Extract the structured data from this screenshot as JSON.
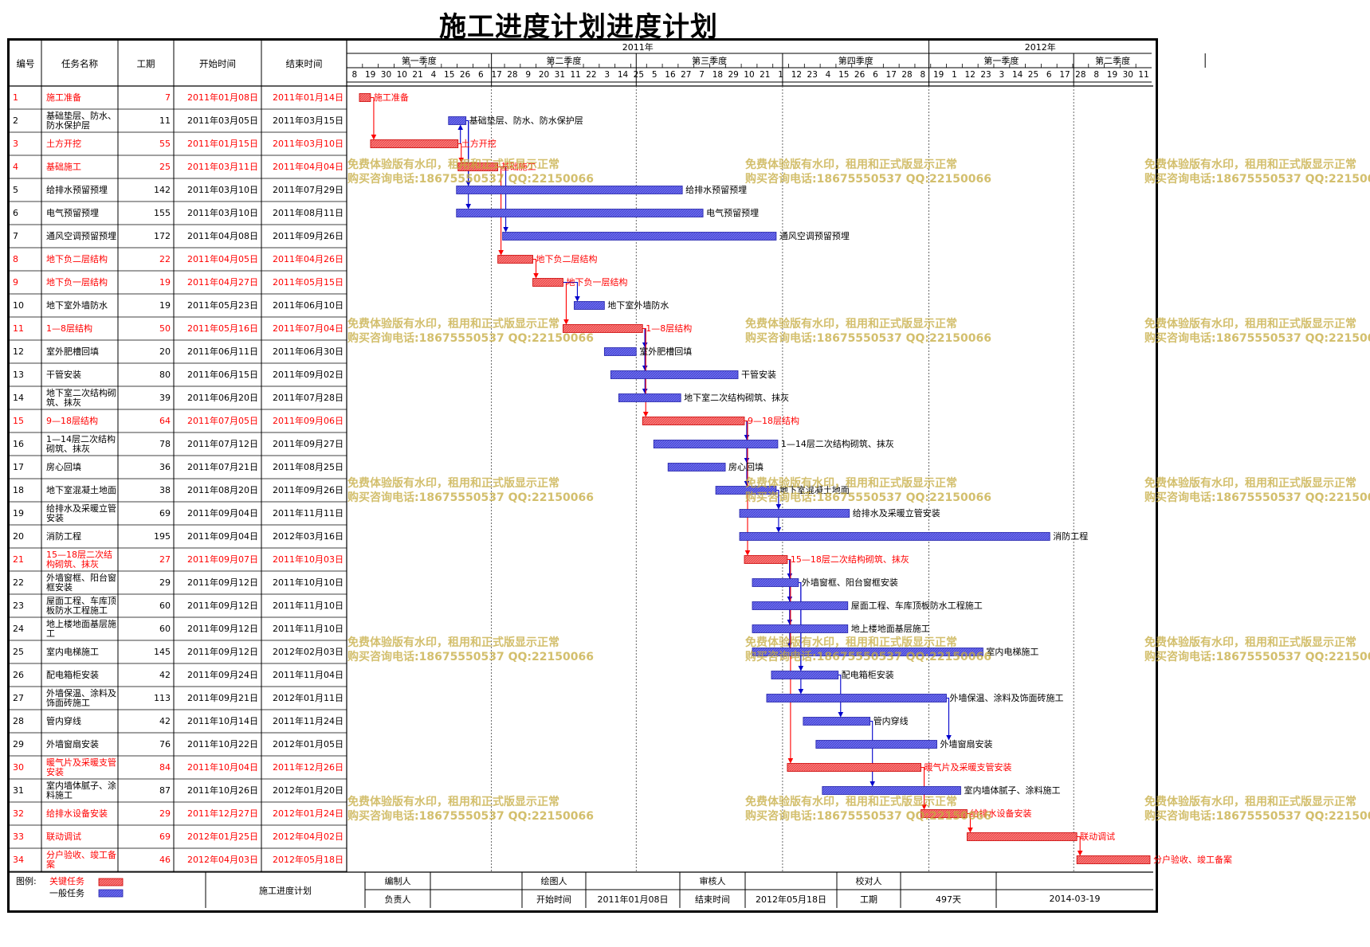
{
  "title": "施工进度计划进度计划",
  "table_headers": {
    "id": "编号",
    "name": "任务名称",
    "duration": "工期",
    "start": "开始时间",
    "end": "结束时间"
  },
  "years": [
    "2011年",
    "2012年"
  ],
  "quarters": [
    "第一季度",
    "第二季度",
    "第三季度",
    "第四季度",
    "第一季度",
    "第二季度"
  ],
  "week_ticks": [
    "8",
    "19",
    "30",
    "10",
    "21",
    "4",
    "15",
    "26",
    "6",
    "17",
    "28",
    "9",
    "20",
    "31",
    "11",
    "22",
    "3",
    "14",
    "25",
    "5",
    "16",
    "27",
    "7",
    "18",
    "29",
    "10",
    "21",
    "1",
    "12",
    "23",
    "4",
    "15",
    "26",
    "6",
    "17",
    "28",
    "8",
    "19",
    "1",
    "12",
    "23",
    "3",
    "14",
    "25",
    "6",
    "17",
    "28",
    "8",
    "19",
    "30",
    "11"
  ],
  "colors": {
    "critical": "#ff6b6b",
    "normal": "#6666ee",
    "critical_text": "#ff0000",
    "link_critical": "#ff0000",
    "link_normal": "#0000cc"
  },
  "chart_data": {
    "type": "gantt",
    "title": "施工进度计划进度计划",
    "axis_start": "2011-01-08",
    "axis_end": "2012-05-18",
    "tasks": [
      {
        "id": "1",
        "name": "施工准备",
        "duration": "7",
        "start": "2011年01月08日",
        "end": "2011年01月14日",
        "s": "2011-01-08",
        "e": "2011-01-14",
        "critical": true
      },
      {
        "id": "2",
        "name": "基础垫层、防水、防水保护层",
        "duration": "11",
        "start": "2011年03月05日",
        "end": "2011年03月15日",
        "s": "2011-03-05",
        "e": "2011-03-15",
        "critical": false
      },
      {
        "id": "3",
        "name": "土方开挖",
        "duration": "55",
        "start": "2011年01月15日",
        "end": "2011年03月10日",
        "s": "2011-01-15",
        "e": "2011-03-10",
        "critical": true
      },
      {
        "id": "4",
        "name": "基础施工",
        "duration": "25",
        "start": "2011年03月11日",
        "end": "2011年04月04日",
        "s": "2011-03-11",
        "e": "2011-04-04",
        "critical": true
      },
      {
        "id": "5",
        "name": "给排水预留预埋",
        "duration": "142",
        "start": "2011年03月10日",
        "end": "2011年07月29日",
        "s": "2011-03-10",
        "e": "2011-07-29",
        "critical": false
      },
      {
        "id": "6",
        "name": "电气预留预埋",
        "duration": "155",
        "start": "2011年03月10日",
        "end": "2011年08月11日",
        "s": "2011-03-10",
        "e": "2011-08-11",
        "critical": false
      },
      {
        "id": "7",
        "name": "通风空调预留预埋",
        "duration": "172",
        "start": "2011年04月08日",
        "end": "2011年09月26日",
        "s": "2011-04-08",
        "e": "2011-09-26",
        "critical": false
      },
      {
        "id": "8",
        "name": "地下负二层结构",
        "duration": "22",
        "start": "2011年04月05日",
        "end": "2011年04月26日",
        "s": "2011-04-05",
        "e": "2011-04-26",
        "critical": true
      },
      {
        "id": "9",
        "name": "地下负一层结构",
        "duration": "19",
        "start": "2011年04月27日",
        "end": "2011年05月15日",
        "s": "2011-04-27",
        "e": "2011-05-15",
        "critical": true
      },
      {
        "id": "10",
        "name": "地下室外墙防水",
        "duration": "19",
        "start": "2011年05月23日",
        "end": "2011年06月10日",
        "s": "2011-05-23",
        "e": "2011-06-10",
        "critical": false
      },
      {
        "id": "11",
        "name": "1—8层结构",
        "duration": "50",
        "start": "2011年05月16日",
        "end": "2011年07月04日",
        "s": "2011-05-16",
        "e": "2011-07-04",
        "critical": true
      },
      {
        "id": "12",
        "name": "室外肥槽回填",
        "duration": "20",
        "start": "2011年06月11日",
        "end": "2011年06月30日",
        "s": "2011-06-11",
        "e": "2011-06-30",
        "critical": false
      },
      {
        "id": "13",
        "name": "干管安装",
        "duration": "80",
        "start": "2011年06月15日",
        "end": "2011年09月02日",
        "s": "2011-06-15",
        "e": "2011-09-02",
        "critical": false
      },
      {
        "id": "14",
        "name": "地下室二次结构砌筑、抹灰",
        "duration": "39",
        "start": "2011年06月20日",
        "end": "2011年07月28日",
        "s": "2011-06-20",
        "e": "2011-07-28",
        "critical": false
      },
      {
        "id": "15",
        "name": "9—18层结构",
        "duration": "64",
        "start": "2011年07月05日",
        "end": "2011年09月06日",
        "s": "2011-07-05",
        "e": "2011-09-06",
        "critical": true
      },
      {
        "id": "16",
        "name": "1—14层二次结构砌筑、抹灰",
        "duration": "78",
        "start": "2011年07月12日",
        "end": "2011年09月27日",
        "s": "2011-07-12",
        "e": "2011-09-27",
        "critical": false
      },
      {
        "id": "17",
        "name": "房心回填",
        "duration": "36",
        "start": "2011年07月21日",
        "end": "2011年08月25日",
        "s": "2011-07-21",
        "e": "2011-08-25",
        "critical": false
      },
      {
        "id": "18",
        "name": "地下室混凝土地面",
        "duration": "38",
        "start": "2011年08月20日",
        "end": "2011年09月26日",
        "s": "2011-08-20",
        "e": "2011-09-26",
        "critical": false
      },
      {
        "id": "19",
        "name": "给排水及采暖立管安装",
        "duration": "69",
        "start": "2011年09月04日",
        "end": "2011年11月11日",
        "s": "2011-09-04",
        "e": "2011-11-11",
        "critical": false
      },
      {
        "id": "20",
        "name": "消防工程",
        "duration": "195",
        "start": "2011年09月04日",
        "end": "2012年03月16日",
        "s": "2011-09-04",
        "e": "2012-03-16",
        "critical": false
      },
      {
        "id": "21",
        "name": "15—18层二次结构砌筑、抹灰",
        "duration": "27",
        "start": "2011年09月07日",
        "end": "2011年10月03日",
        "s": "2011-09-07",
        "e": "2011-10-03",
        "critical": true
      },
      {
        "id": "22",
        "name": "外墙窗框、阳台窗框安装",
        "duration": "29",
        "start": "2011年09月12日",
        "end": "2011年10月10日",
        "s": "2011-09-12",
        "e": "2011-10-10",
        "critical": false
      },
      {
        "id": "23",
        "name": "屋面工程、车库顶板防水工程施工",
        "duration": "60",
        "start": "2011年09月12日",
        "end": "2011年11月10日",
        "s": "2011-09-12",
        "e": "2011-11-10",
        "critical": false
      },
      {
        "id": "24",
        "name": "地上楼地面基层施工",
        "duration": "60",
        "start": "2011年09月12日",
        "end": "2011年11月10日",
        "s": "2011-09-12",
        "e": "2011-11-10",
        "critical": false
      },
      {
        "id": "25",
        "name": "室内电梯施工",
        "duration": "145",
        "start": "2011年09月12日",
        "end": "2012年02月03日",
        "s": "2011-09-12",
        "e": "2012-02-03",
        "critical": false
      },
      {
        "id": "26",
        "name": "配电箱柜安装",
        "duration": "42",
        "start": "2011年09月24日",
        "end": "2011年11月04日",
        "s": "2011-09-24",
        "e": "2011-11-04",
        "critical": false
      },
      {
        "id": "27",
        "name": "外墙保温、涂料及饰面砖施工",
        "duration": "113",
        "start": "2011年09月21日",
        "end": "2012年01月11日",
        "s": "2011-09-21",
        "e": "2012-01-11",
        "critical": false
      },
      {
        "id": "28",
        "name": "管内穿线",
        "duration": "42",
        "start": "2011年10月14日",
        "end": "2011年11月24日",
        "s": "2011-10-14",
        "e": "2011-11-24",
        "critical": false
      },
      {
        "id": "29",
        "name": "外墙窗扇安装",
        "duration": "76",
        "start": "2011年10月22日",
        "end": "2012年01月05日",
        "s": "2011-10-22",
        "e": "2012-01-05",
        "critical": false
      },
      {
        "id": "30",
        "name": "暖气片及采暖支管安装",
        "duration": "84",
        "start": "2011年10月04日",
        "end": "2011年12月26日",
        "s": "2011-10-04",
        "e": "2011-12-26",
        "critical": true
      },
      {
        "id": "31",
        "name": "室内墙体腻子、涂料施工",
        "duration": "87",
        "start": "2011年10月26日",
        "end": "2012年01月20日",
        "s": "2011-10-26",
        "e": "2012-01-20",
        "critical": false
      },
      {
        "id": "32",
        "name": "给排水设备安装",
        "duration": "29",
        "start": "2011年12月27日",
        "end": "2012年01月24日",
        "s": "2011-12-27",
        "e": "2012-01-24",
        "critical": true
      },
      {
        "id": "33",
        "name": "联动调试",
        "duration": "69",
        "start": "2012年01月25日",
        "end": "2012年04月02日",
        "s": "2012-01-25",
        "e": "2012-04-02",
        "critical": true
      },
      {
        "id": "34",
        "name": "分户验收、竣工备案",
        "duration": "46",
        "start": "2012年04月03日",
        "end": "2012年05月18日",
        "s": "2012-04-03",
        "e": "2012-05-18",
        "critical": true
      }
    ],
    "links": [
      [
        "1",
        "3"
      ],
      [
        "3",
        "2"
      ],
      [
        "3",
        "4"
      ],
      [
        "2",
        "5"
      ],
      [
        "2",
        "6"
      ],
      [
        "4",
        "7"
      ],
      [
        "4",
        "8"
      ],
      [
        "8",
        "9"
      ],
      [
        "9",
        "11"
      ],
      [
        "9",
        "10"
      ],
      [
        "11",
        "12"
      ],
      [
        "11",
        "13"
      ],
      [
        "11",
        "14"
      ],
      [
        "11",
        "15"
      ],
      [
        "15",
        "16"
      ],
      [
        "15",
        "17"
      ],
      [
        "15",
        "18"
      ],
      [
        "15",
        "21"
      ],
      [
        "18",
        "19"
      ],
      [
        "18",
        "20"
      ],
      [
        "21",
        "22"
      ],
      [
        "21",
        "23"
      ],
      [
        "21",
        "24"
      ],
      [
        "21",
        "25"
      ],
      [
        "22",
        "26"
      ],
      [
        "22",
        "27"
      ],
      [
        "21",
        "30"
      ],
      [
        "26",
        "28"
      ],
      [
        "27",
        "29"
      ],
      [
        "28",
        "31"
      ],
      [
        "30",
        "32"
      ],
      [
        "32",
        "33"
      ],
      [
        "33",
        "34"
      ]
    ]
  },
  "watermark": {
    "line1": "免费体验版有水印，租用和正式版显示正常",
    "line2": "购买咨询电话:18675550537 QQ:22150066"
  },
  "legend": {
    "label": "图例:",
    "critical": "关键任务",
    "normal": "一般任务"
  },
  "footer": {
    "plan_name": "施工进度计划",
    "editor_label": "编制人",
    "editor": "",
    "drawer_label": "绘图人",
    "drawer": "",
    "reviewer_label": "审核人",
    "reviewer": "",
    "checker_label": "校对人",
    "checker": "",
    "owner_label": "负责人",
    "owner": "",
    "start_label": "开始时间",
    "start": "2011年01月08日",
    "end_label": "结束时间",
    "end": "2012年05月18日",
    "duration_label": "工期",
    "duration": "497天",
    "date": "2014-03-19"
  }
}
